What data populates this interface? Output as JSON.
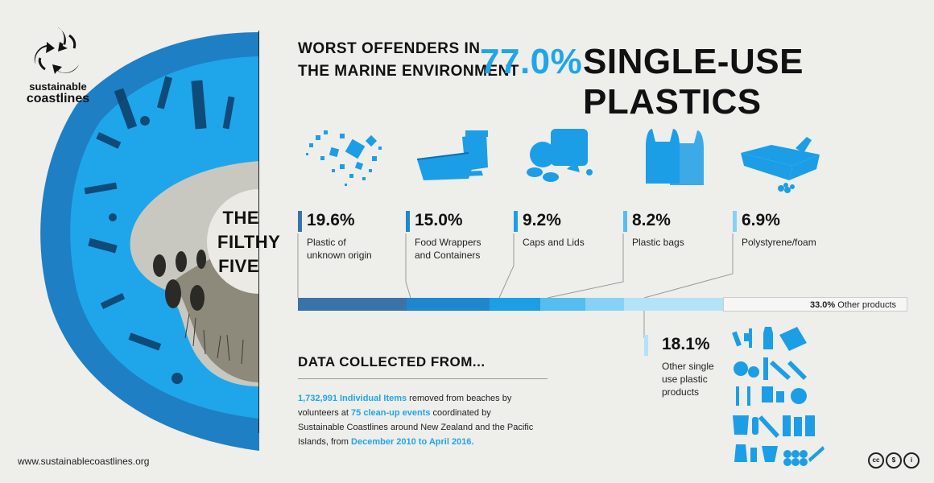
{
  "logo": {
    "line1": "sustainable",
    "line2": "coastlines"
  },
  "left_panel": {
    "line1": "THE",
    "line2": "FILTHY",
    "line3": "FIVE"
  },
  "header": {
    "small_line1": "WORST OFFENDERS IN",
    "small_line2": "THE MARINE ENVIRONMENT",
    "percent": "77.0%",
    "title": "SINGLE-USE PLASTICS"
  },
  "categories": [
    {
      "percent": "19.6%",
      "label_line1": "Plastic of",
      "label_line2": "unknown origin",
      "color": "#3a73a8",
      "icon": "fragments-icon"
    },
    {
      "percent": "15.0%",
      "label_line1": "Food Wrappers",
      "label_line2": "and Containers",
      "color": "#1f86d0",
      "icon": "food-container-icon"
    },
    {
      "percent": "9.2%",
      "label_line1": "Caps and Lids",
      "label_line2": "",
      "color": "#1c9ee6",
      "icon": "caps-icon"
    },
    {
      "percent": "8.2%",
      "label_line1": "Plastic bags",
      "label_line2": "",
      "color": "#55bdf0",
      "icon": "bags-icon"
    },
    {
      "percent": "6.9%",
      "label_line1": "Polystyrene/foam",
      "label_line2": "",
      "color": "#86d2f6",
      "icon": "foam-icon"
    }
  ],
  "bar_values": [
    19.6,
    15.0,
    9.2,
    8.2,
    6.9,
    18.1,
    33.0
  ],
  "bar_colors": [
    "#3a73a8",
    "#1f86d0",
    "#1c9ee6",
    "#55bdf0",
    "#86d2f6",
    "#b3e2f9",
    "#f6f6f4"
  ],
  "other_products": {
    "percent": "33.0%",
    "label": "Other products"
  },
  "other_single_use": {
    "percent": "18.1%",
    "line1": "Other single",
    "line2": "use plastic",
    "line3": "products"
  },
  "data_section": {
    "title": "DATA COLLECTED FROM...",
    "items_count": "1,732,991 Individual Items",
    "text1": " removed from beaches by volunteers at ",
    "events": "75 clean-up events",
    "text2": " coordinated by Sustainable Coastlines around New Zealand and the Pacific Islands, from ",
    "dates": "December 2010 to April 2016."
  },
  "footer": {
    "website": "www.sustainablecoastlines.org"
  },
  "license": {
    "cc": "cc",
    "nc": "$",
    "by": "i"
  },
  "colors": {
    "accent": "#1fa6ea",
    "dark_blue": "#1e7fc4",
    "background": "#eeeeeb"
  }
}
